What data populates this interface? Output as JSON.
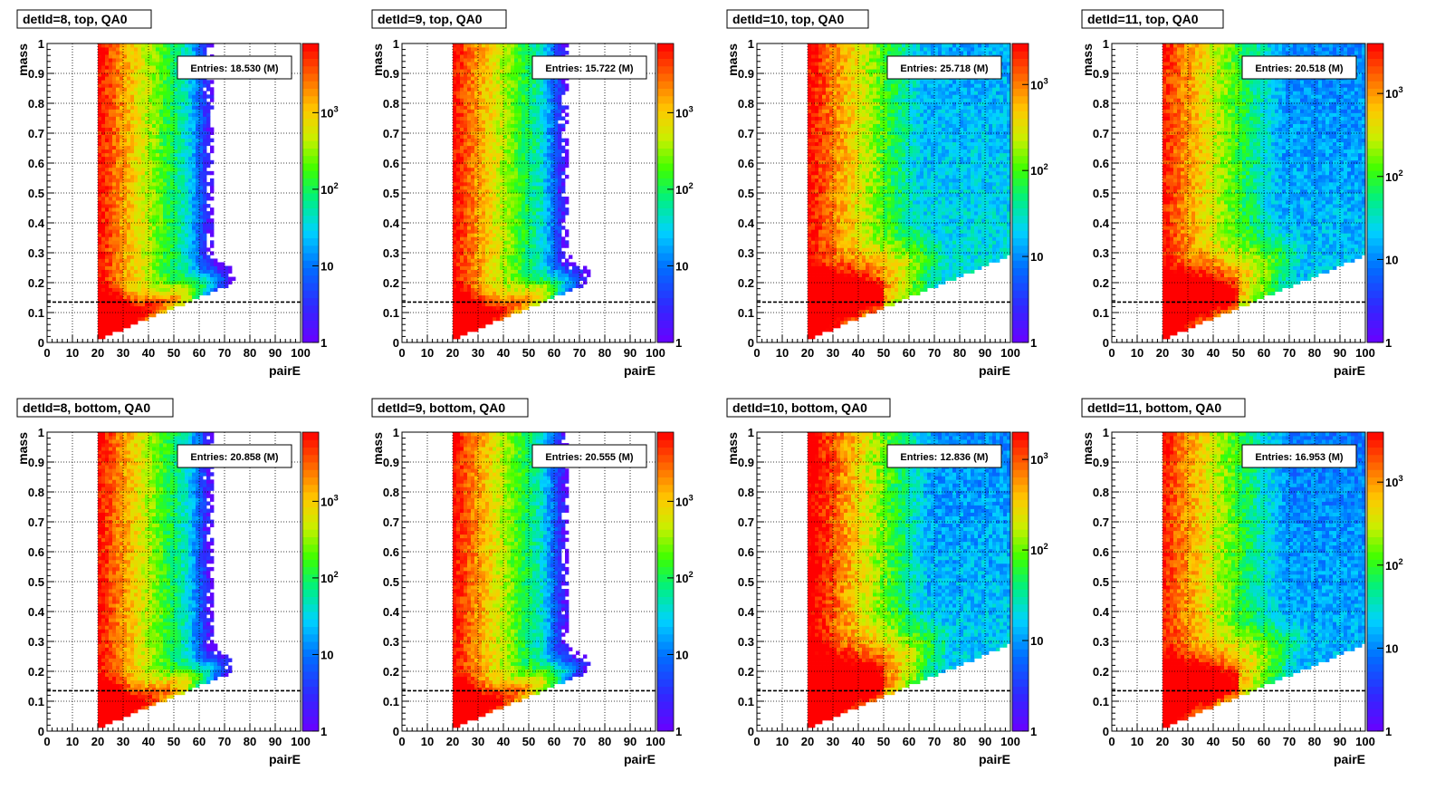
{
  "chart_data": [
    {
      "type": "heatmap",
      "title": "detId=8, top, QA0",
      "entries_label": "Entries: 18.530 (M)",
      "xlabel": "pairE",
      "ylabel": "mass",
      "xlim": [
        0,
        100
      ],
      "ylim": [
        0,
        1
      ],
      "x_ticks": [
        "0",
        "10",
        "20",
        "30",
        "40",
        "50",
        "60",
        "70",
        "80",
        "90",
        "100"
      ],
      "y_ticks": [
        "0",
        "0.1",
        "0.2",
        "0.3",
        "0.4",
        "0.5",
        "0.6",
        "0.7",
        "0.8",
        "0.9",
        "1"
      ],
      "z_scale": "log",
      "z_ticks": [
        "1",
        "10",
        "10^2",
        "10^3"
      ],
      "z_max": 8000,
      "reference_line_mass": 0.135,
      "grid": true,
      "pattern": "narrow",
      "hi_energy_tail": 0.1
    },
    {
      "type": "heatmap",
      "title": "detId=9, top, QA0",
      "entries_label": "Entries: 15.722 (M)",
      "xlabel": "pairE",
      "ylabel": "mass",
      "xlim": [
        0,
        100
      ],
      "ylim": [
        0,
        1
      ],
      "x_ticks": [
        "0",
        "10",
        "20",
        "30",
        "40",
        "50",
        "60",
        "70",
        "80",
        "90",
        "100"
      ],
      "y_ticks": [
        "0",
        "0.1",
        "0.2",
        "0.3",
        "0.4",
        "0.5",
        "0.6",
        "0.7",
        "0.8",
        "0.9",
        "1"
      ],
      "z_scale": "log",
      "z_ticks": [
        "1",
        "10",
        "10^2",
        "10^3"
      ],
      "z_max": 8000,
      "reference_line_mass": 0.135,
      "grid": true,
      "pattern": "narrow",
      "hi_energy_tail": 0.1
    },
    {
      "type": "heatmap",
      "title": "detId=10, top, QA0",
      "entries_label": "Entries: 25.718 (M)",
      "xlabel": "pairE",
      "ylabel": "mass",
      "xlim": [
        0,
        100
      ],
      "ylim": [
        0,
        1
      ],
      "x_ticks": [
        "0",
        "10",
        "20",
        "30",
        "40",
        "50",
        "60",
        "70",
        "80",
        "90",
        "100"
      ],
      "y_ticks": [
        "0",
        "0.1",
        "0.2",
        "0.3",
        "0.4",
        "0.5",
        "0.6",
        "0.7",
        "0.8",
        "0.9",
        "1"
      ],
      "z_scale": "log",
      "z_ticks": [
        "1",
        "10",
        "10^2",
        "10^3"
      ],
      "z_max": 3000,
      "reference_line_mass": 0.135,
      "grid": true,
      "pattern": "wide",
      "hi_energy_tail": 1.0
    },
    {
      "type": "heatmap",
      "title": "detId=11, top, QA0",
      "entries_label": "Entries: 20.518 (M)",
      "xlabel": "pairE",
      "ylabel": "mass",
      "xlim": [
        0,
        100
      ],
      "ylim": [
        0,
        1
      ],
      "x_ticks": [
        "0",
        "10",
        "20",
        "30",
        "40",
        "50",
        "60",
        "70",
        "80",
        "90",
        "100"
      ],
      "y_ticks": [
        "0",
        "0.1",
        "0.2",
        "0.3",
        "0.4",
        "0.5",
        "0.6",
        "0.7",
        "0.8",
        "0.9",
        "1"
      ],
      "z_scale": "log",
      "z_ticks": [
        "1",
        "10",
        "10^2",
        "10^3"
      ],
      "z_max": 4000,
      "reference_line_mass": 0.135,
      "grid": true,
      "pattern": "wide",
      "hi_energy_tail": 0.8
    },
    {
      "type": "heatmap",
      "title": "detId=8, bottom, QA0",
      "entries_label": "Entries: 20.858 (M)",
      "xlabel": "pairE",
      "ylabel": "mass",
      "xlim": [
        0,
        100
      ],
      "ylim": [
        0,
        1
      ],
      "x_ticks": [
        "0",
        "10",
        "20",
        "30",
        "40",
        "50",
        "60",
        "70",
        "80",
        "90",
        "100"
      ],
      "y_ticks": [
        "0",
        "0.1",
        "0.2",
        "0.3",
        "0.4",
        "0.5",
        "0.6",
        "0.7",
        "0.8",
        "0.9",
        "1"
      ],
      "z_scale": "log",
      "z_ticks": [
        "1",
        "10",
        "10^2",
        "10^3"
      ],
      "z_max": 8000,
      "reference_line_mass": 0.135,
      "grid": true,
      "pattern": "narrow",
      "hi_energy_tail": 0.15
    },
    {
      "type": "heatmap",
      "title": "detId=9, bottom, QA0",
      "entries_label": "Entries: 20.555 (M)",
      "xlabel": "pairE",
      "ylabel": "mass",
      "xlim": [
        0,
        100
      ],
      "ylim": [
        0,
        1
      ],
      "x_ticks": [
        "0",
        "10",
        "20",
        "30",
        "40",
        "50",
        "60",
        "70",
        "80",
        "90",
        "100"
      ],
      "y_ticks": [
        "0",
        "0.1",
        "0.2",
        "0.3",
        "0.4",
        "0.5",
        "0.6",
        "0.7",
        "0.8",
        "0.9",
        "1"
      ],
      "z_scale": "log",
      "z_ticks": [
        "1",
        "10",
        "10^2",
        "10^3"
      ],
      "z_max": 8000,
      "reference_line_mass": 0.135,
      "grid": true,
      "pattern": "narrow",
      "hi_energy_tail": 0.15
    },
    {
      "type": "heatmap",
      "title": "detId=10, bottom, QA0",
      "entries_label": "Entries: 12.836 (M)",
      "xlabel": "pairE",
      "ylabel": "mass",
      "xlim": [
        0,
        100
      ],
      "ylim": [
        0,
        1
      ],
      "x_ticks": [
        "0",
        "10",
        "20",
        "30",
        "40",
        "50",
        "60",
        "70",
        "80",
        "90",
        "100"
      ],
      "y_ticks": [
        "0",
        "0.1",
        "0.2",
        "0.3",
        "0.4",
        "0.5",
        "0.6",
        "0.7",
        "0.8",
        "0.9",
        "1"
      ],
      "z_scale": "log",
      "z_ticks": [
        "1",
        "10",
        "10^2",
        "10^3"
      ],
      "z_max": 2000,
      "reference_line_mass": 0.135,
      "grid": true,
      "pattern": "wide",
      "hi_energy_tail": 0.7
    },
    {
      "type": "heatmap",
      "title": "detId=11, bottom, QA0",
      "entries_label": "Entries: 16.953 (M)",
      "xlabel": "pairE",
      "ylabel": "mass",
      "xlim": [
        0,
        100
      ],
      "ylim": [
        0,
        1
      ],
      "x_ticks": [
        "0",
        "10",
        "20",
        "30",
        "40",
        "50",
        "60",
        "70",
        "80",
        "90",
        "100"
      ],
      "y_ticks": [
        "0",
        "0.1",
        "0.2",
        "0.3",
        "0.4",
        "0.5",
        "0.6",
        "0.7",
        "0.8",
        "0.9",
        "1"
      ],
      "z_scale": "log",
      "z_ticks": [
        "1",
        "10",
        "10^2",
        "10^3"
      ],
      "z_max": 4000,
      "reference_line_mass": 0.135,
      "grid": true,
      "pattern": "wide",
      "hi_energy_tail": 0.7
    }
  ]
}
